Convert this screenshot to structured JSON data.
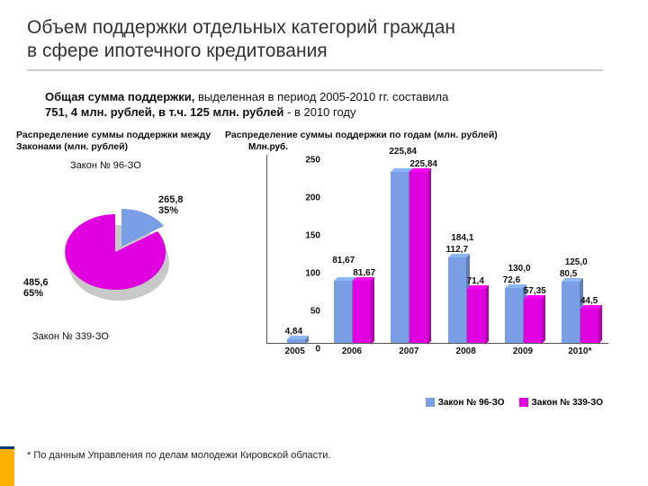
{
  "title_line1": "Объем поддержки отдельных категорий граждан",
  "title_line2": "в сфере ипотечного кредитования",
  "subtitle_b1": "Общая сумма поддержки,",
  "subtitle_rest1": " выделенная в период 2005-2010 гг. составила",
  "subtitle_b2": "751, 4 млн. рублей, в т.ч. 125 млн. рублей",
  "subtitle_rest2": " - в 2010 году",
  "pie": {
    "title": "Распределение суммы поддержки между Законами (млн. рублей)",
    "callout1": "Закон № 96-ЗО",
    "callout2": "Закон № 339-ЗО",
    "slice1": {
      "value": "265,8",
      "pct": "35%",
      "color": "#7a9ee6"
    },
    "slice2": {
      "value": "485,6",
      "pct": "65%",
      "color": "#e000e0"
    },
    "shadow_color": "#c8c8c8"
  },
  "bar": {
    "title": "Распределение суммы поддержки по годам (млн. рублей)",
    "yaxis_label": "Млн.руб.",
    "ymax": 250,
    "ytick_step": 50,
    "yticks": [
      "0",
      "50",
      "100",
      "150",
      "200",
      "250"
    ],
    "categories": [
      "2005",
      "2006",
      "2007",
      "2008",
      "2009",
      "2010*"
    ],
    "series": {
      "s1": {
        "name": "Закон № 96-ЗО",
        "color": "#7a9ee6",
        "values": [
          4.84,
          81.67,
          225.84,
          112.7,
          72.6,
          80.5
        ],
        "labels": [
          "4,84",
          "81,67",
          "225,84",
          "112,7",
          "72,6",
          "80,5"
        ]
      },
      "s2": {
        "name": "Закон № 339-ЗО",
        "color": "#e000e0",
        "values": [
          0,
          81.67,
          225.84,
          71.4,
          57.35,
          44.5
        ],
        "labels": [
          "",
          "81,67",
          "225,84",
          "71,4",
          "57,35",
          "44,5"
        ]
      }
    },
    "column_totals": [
      "",
      "",
      "",
      "184,1",
      "130,0",
      "125,0"
    ]
  },
  "footnote": "* По данным Управления по делам молодежи Кировской области.",
  "colors": {
    "title_text": "#333333",
    "underline": "#cccccc",
    "axis": "#555555",
    "bg": "#ffffff",
    "marker_orange": "#ffb000",
    "marker_blue": "#003b73"
  }
}
